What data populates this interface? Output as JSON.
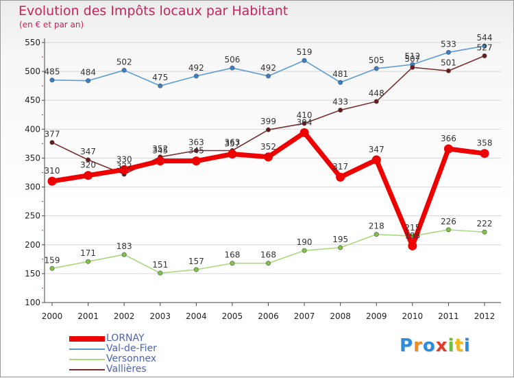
{
  "title": "Evolution des Impôts locaux par Habitant",
  "subtitle": "(en € et par an)",
  "logo": {
    "text": "Proxiti",
    "colors": [
      "#2e8bd8",
      "#f08a1c",
      "#2e8bd8",
      "#e23a2a",
      "#6cbf3a",
      "#f0b81c",
      "#2e8bd8"
    ]
  },
  "chart_data": {
    "type": "line",
    "title": "Evolution des Impôts locaux par Habitant",
    "subtitle": "(en € et par an)",
    "xlabel": "",
    "ylabel": "",
    "ylim": [
      100,
      550
    ],
    "yticks": [
      100,
      150,
      200,
      250,
      300,
      350,
      400,
      450,
      500,
      550
    ],
    "grid": "horizontal",
    "legend_position": "bottom-left",
    "x": [
      "2000",
      "2001",
      "2002",
      "2003",
      "2004",
      "2005",
      "2006",
      "2007",
      "2008",
      "2009",
      "2010",
      "2011",
      "2012"
    ],
    "series": [
      {
        "name": "Val-de-Fier",
        "color": "#5b9bd5",
        "marker": "#3a7ec4",
        "bold": false,
        "values": [
          485,
          484,
          502,
          475,
          492,
          506,
          492,
          519,
          481,
          505,
          512,
          533,
          544
        ]
      },
      {
        "name": "Vallières",
        "color": "#7a2e2e",
        "marker": "#6a1818",
        "bold": false,
        "values": [
          377,
          347,
          322,
          352,
          363,
          363,
          399,
          410,
          433,
          448,
          507,
          501,
          527
        ]
      },
      {
        "name": "Versonnex",
        "color": "#a6d97a",
        "marker": "#7cc443",
        "bold": false,
        "values": [
          159,
          171,
          183,
          151,
          157,
          168,
          168,
          190,
          195,
          218,
          215,
          226,
          222
        ]
      },
      {
        "name": "LORNAY",
        "color": "#ee0000",
        "marker": "#ee0000",
        "bold": true,
        "values": [
          310,
          320,
          330,
          345,
          345,
          357,
          352,
          394,
          317,
          347,
          198,
          366,
          358
        ]
      }
    ],
    "legend_order": [
      "LORNAY",
      "Val-de-Fier",
      "Versonnex",
      "Vallières"
    ]
  }
}
